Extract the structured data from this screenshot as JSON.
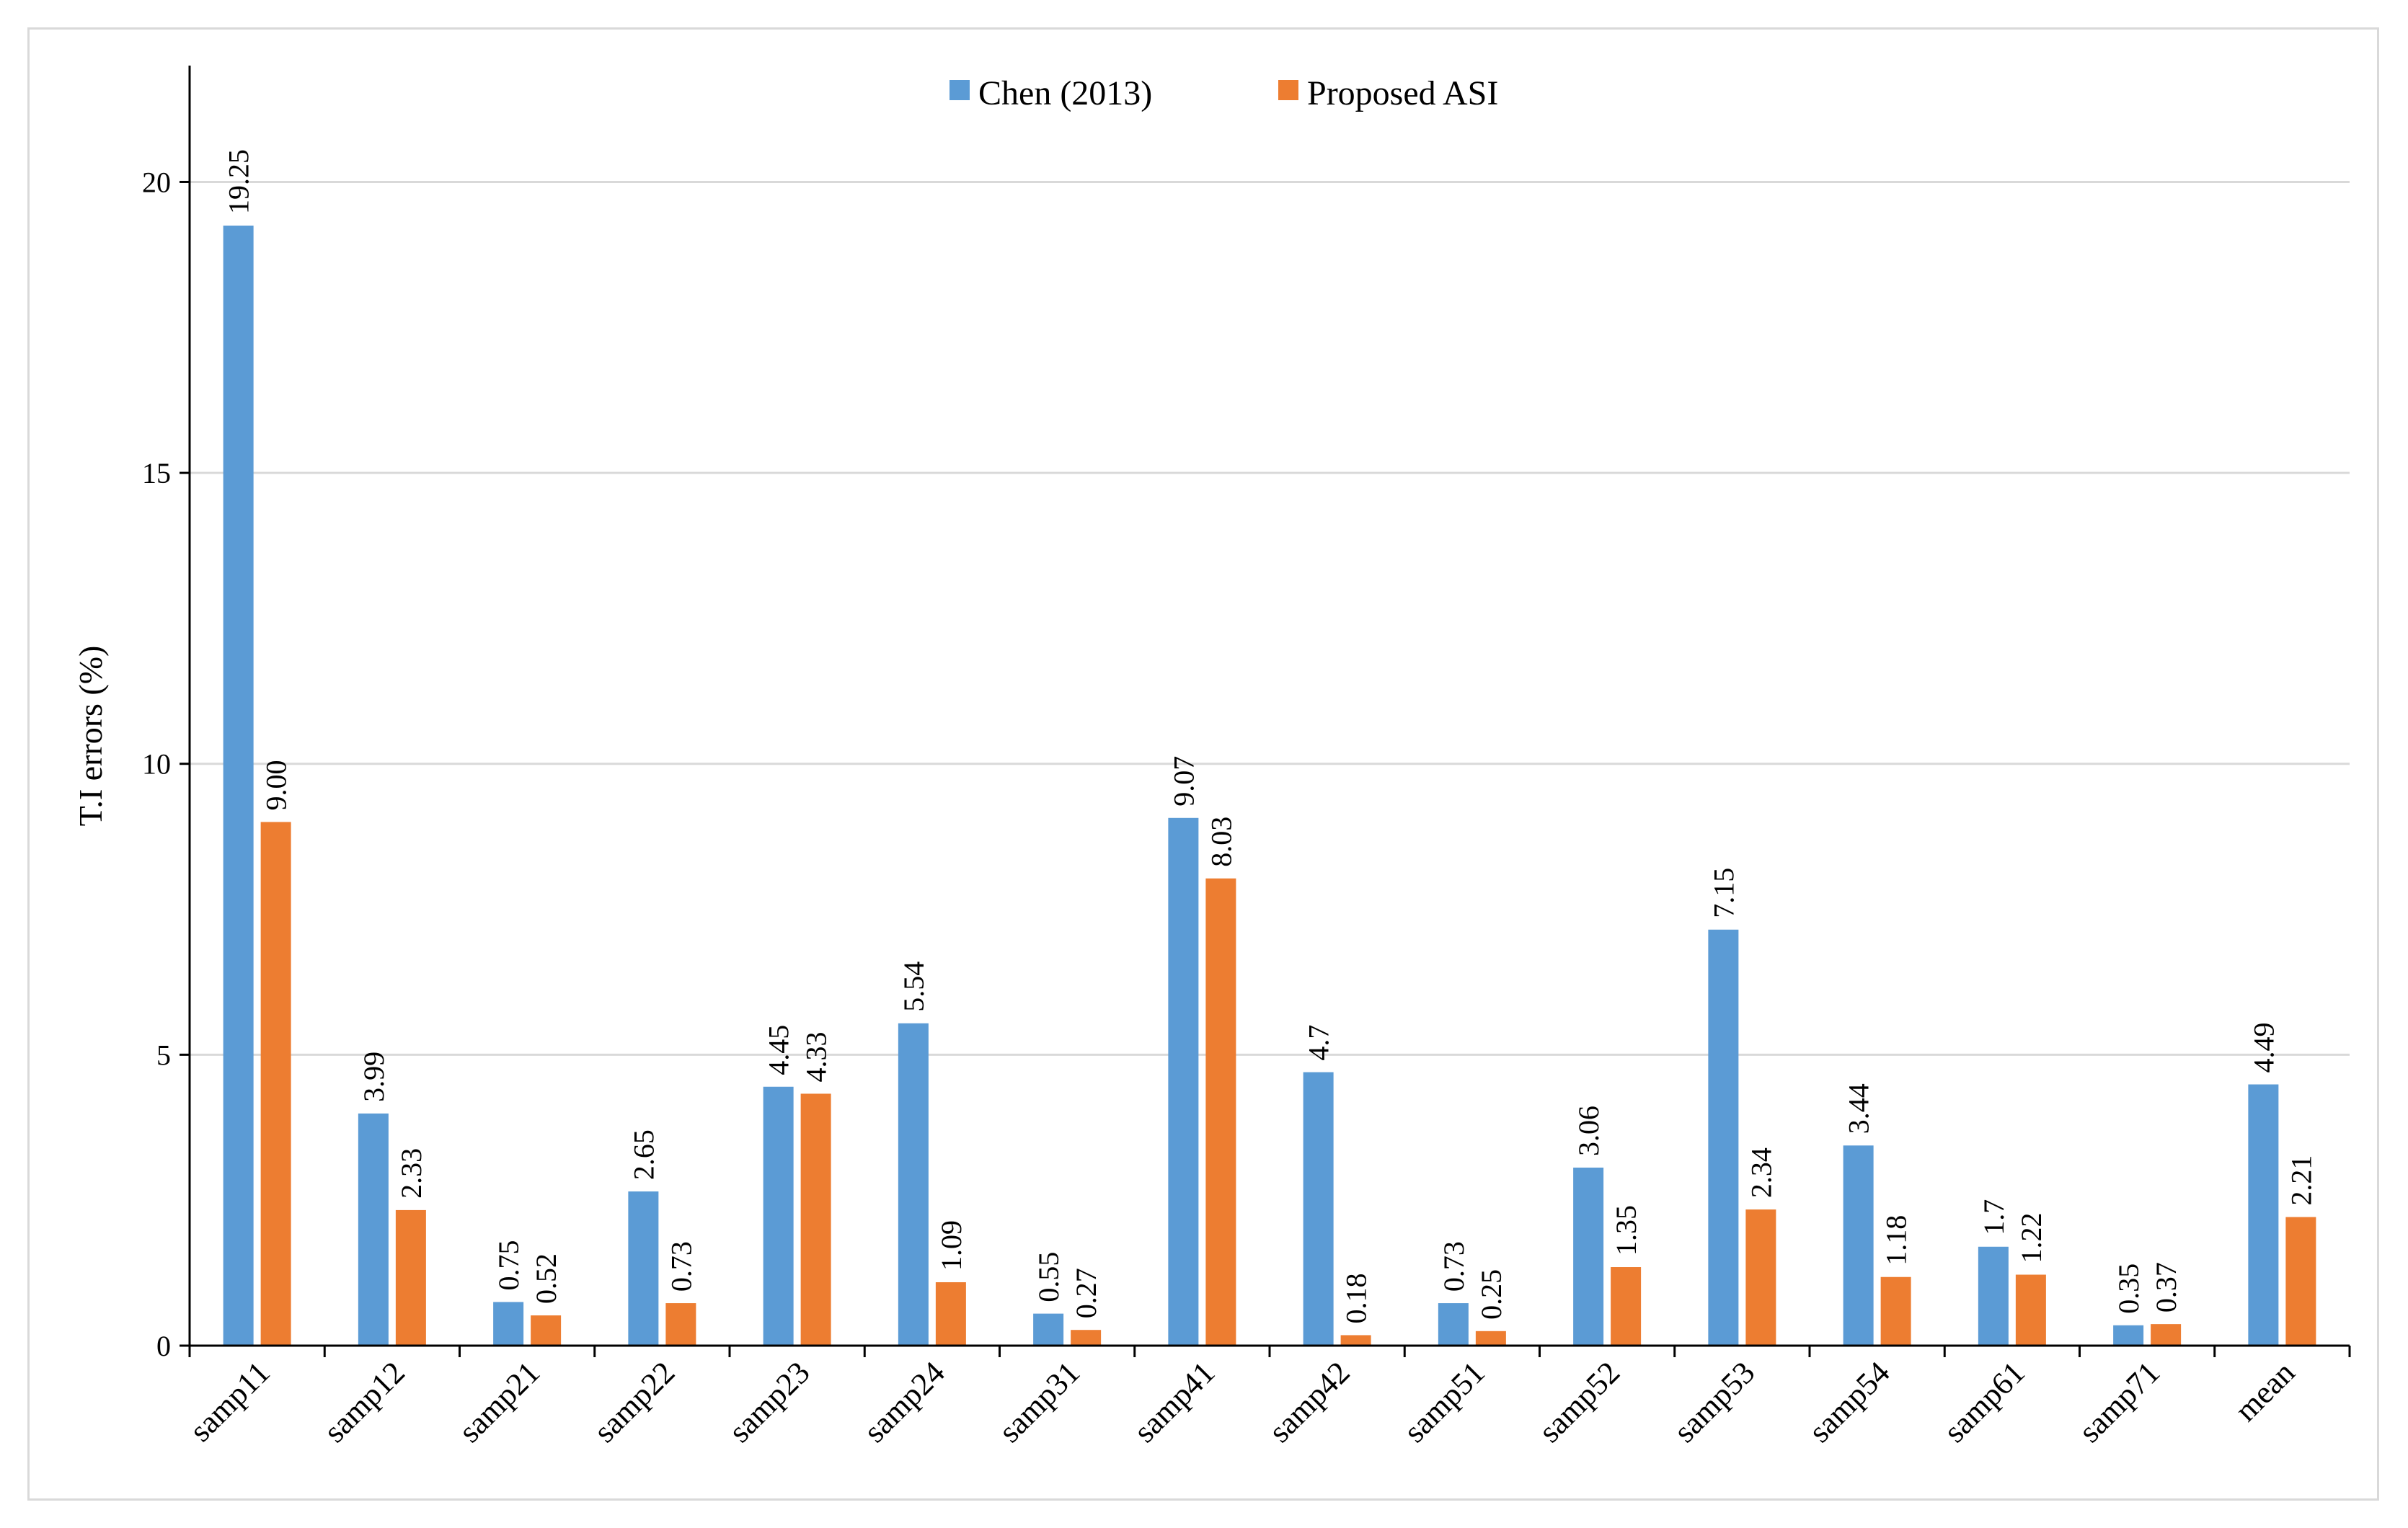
{
  "chart_data": {
    "type": "bar",
    "title": "",
    "xlabel": "",
    "ylabel": "T.I errors (%)",
    "ylim": [
      0,
      22
    ],
    "yticks": [
      0,
      5,
      10,
      15,
      20
    ],
    "grid": true,
    "legend_position": "top-center",
    "categories": [
      "samp11",
      "samp12",
      "samp21",
      "samp22",
      "samp23",
      "samp24",
      "samp31",
      "samp41",
      "samp42",
      "samp51",
      "samp52",
      "samp53",
      "samp54",
      "samp61",
      "samp71",
      "mean"
    ],
    "series": [
      {
        "name": "Chen (2013)",
        "color": "#5b9bd5",
        "values": [
          19.25,
          3.99,
          0.75,
          2.65,
          4.45,
          5.54,
          0.55,
          9.07,
          4.7,
          0.73,
          3.06,
          7.15,
          3.44,
          1.7,
          0.35,
          4.49
        ],
        "labels": [
          "19.25",
          "3.99",
          "0.75",
          "2.65",
          "4.45",
          "5.54",
          "0.55",
          "9.07",
          "4.7",
          "0.73",
          "3.06",
          "7.15",
          "3.44",
          "1.7",
          "0.35",
          "4.49"
        ]
      },
      {
        "name": "Proposed ASI",
        "color": "#ed7d31",
        "values": [
          9.0,
          2.33,
          0.52,
          0.73,
          4.33,
          1.09,
          0.27,
          8.03,
          0.18,
          0.25,
          1.35,
          2.34,
          1.18,
          1.22,
          0.37,
          2.21
        ],
        "labels": [
          "9.00",
          "2.33",
          "0.52",
          "0.73",
          "4.33",
          "1.09",
          "0.27",
          "8.03",
          "0.18",
          "0.25",
          "1.35",
          "2.34",
          "1.18",
          "1.22",
          "0.37",
          "2.21"
        ]
      }
    ]
  }
}
